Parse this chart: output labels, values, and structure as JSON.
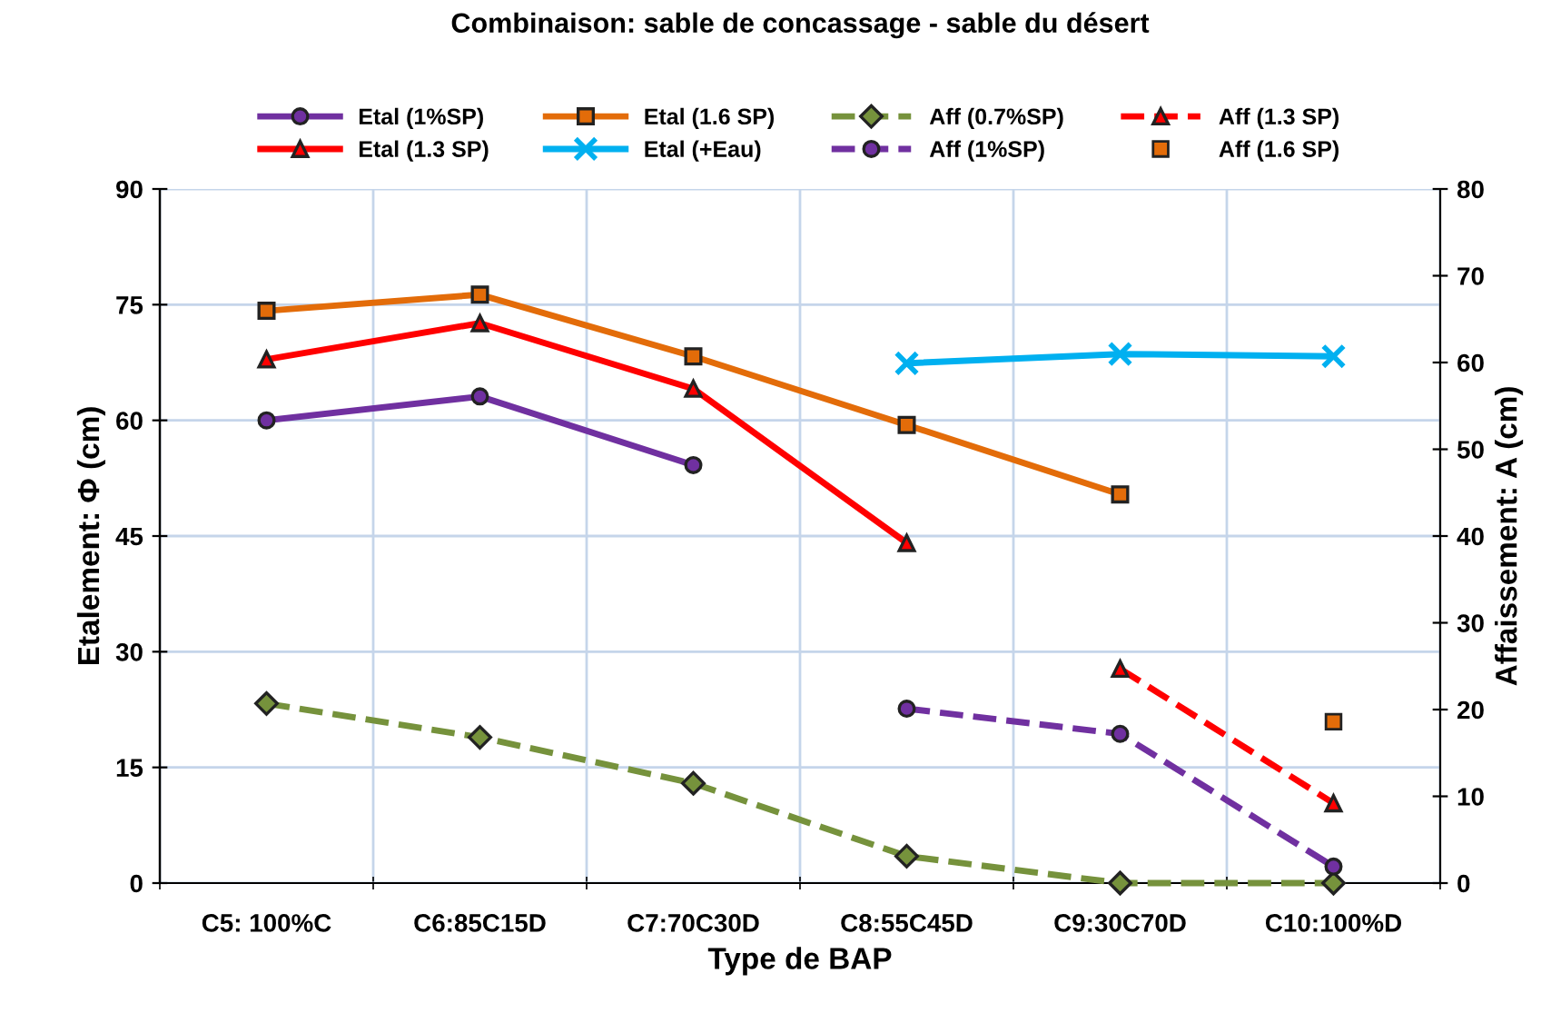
{
  "chart_data": {
    "type": "line",
    "title": "Combinaison: sable de concassage - sable du désert",
    "xlabel": "Type de BAP",
    "ylabel": "Etalement: Φ (cm)",
    "y2label": "Affaissement: A (cm)",
    "categories": [
      "C5: 100%C",
      "C6:85C15D",
      "C7:70C30D",
      "C8:55C45D",
      "C9:30C70D",
      "C10:100%D"
    ],
    "ylim": [
      0,
      90
    ],
    "yticks": [
      0,
      15,
      30,
      45,
      60,
      75,
      90
    ],
    "y2lim": [
      0,
      80
    ],
    "y2ticks": [
      0,
      10,
      20,
      30,
      40,
      50,
      60,
      70,
      80
    ],
    "grid": true,
    "legend": "top",
    "series": [
      {
        "name": "Etal (1%SP)",
        "color": "#7030a0",
        "marker": "circle",
        "line_style": "solid",
        "values": [
          60,
          63.1,
          54.2,
          null,
          null,
          null
        ]
      },
      {
        "name": "Etal (1.3 SP)",
        "color": "#ff0000",
        "marker": "triangle",
        "line_style": "solid",
        "values": [
          67.9,
          72.6,
          64.1,
          44.1,
          null,
          null
        ]
      },
      {
        "name": "Etal (1.6 SP)",
        "color": "#e36c09",
        "marker": "square",
        "line_style": "solid",
        "values": [
          74.2,
          76.3,
          68.3,
          59.4,
          50.4,
          null
        ]
      },
      {
        "name": "Etal (+Eau)",
        "color": "#00b0f0",
        "marker": "cross",
        "line_style": "solid",
        "values": [
          null,
          null,
          null,
          67.4,
          68.6,
          68.3
        ]
      },
      {
        "name": "Aff (0.7%SP)",
        "color": "#76923c",
        "marker": "diamond",
        "line_style": "dashed",
        "axis": "y2",
        "values": [
          20.7,
          16.8,
          11.5,
          3.1,
          0,
          0
        ]
      },
      {
        "name": "Aff (1%SP)",
        "color": "#7030a0",
        "marker": "circle",
        "line_style": "dashed",
        "axis": "y2",
        "values": [
          null,
          null,
          null,
          20.1,
          17.2,
          1.9
        ]
      },
      {
        "name": "Aff (1.3 SP)",
        "color": "#ff0000",
        "marker": "triangle",
        "line_style": "dashed",
        "axis": "y2",
        "values": [
          null,
          null,
          null,
          null,
          24.7,
          9.2
        ]
      },
      {
        "name": "Aff (1.6 SP)",
        "type": "scatter",
        "color": "#e36c09",
        "marker": "square",
        "axis": "y2",
        "values": [
          null,
          null,
          null,
          null,
          null,
          18.6
        ]
      }
    ]
  }
}
